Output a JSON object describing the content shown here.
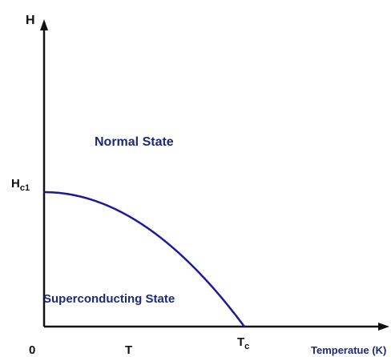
{
  "axes": {
    "y_label": "H",
    "x_label": "Temperatue (K)"
  },
  "y_mark": {
    "symbol": "H",
    "subscript": "c1"
  },
  "x_marks": [
    {
      "symbol": "0"
    },
    {
      "symbol": "T"
    },
    {
      "symbol": "T",
      "subscript": "c"
    }
  ],
  "regions": [
    "Normal State",
    "Superconducting State"
  ]
}
